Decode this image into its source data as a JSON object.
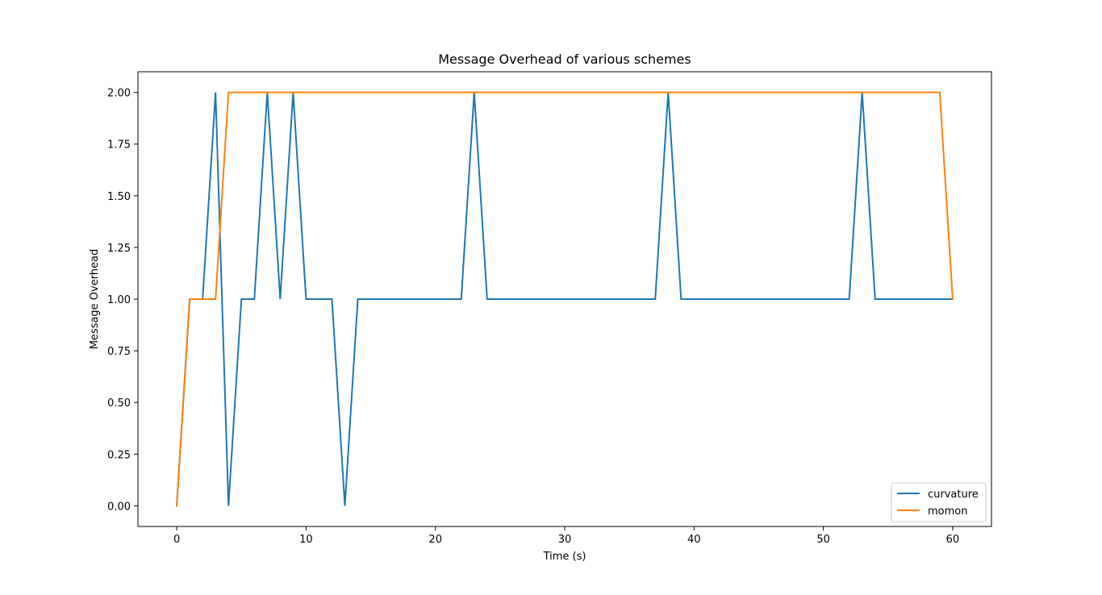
{
  "chart_data": {
    "type": "line",
    "title": "Message Overhead of various schemes",
    "xlabel": "Time (s)",
    "ylabel": "Message Overhead",
    "xlim": [
      -3,
      63
    ],
    "ylim": [
      -0.1,
      2.1
    ],
    "xticks": [
      0,
      10,
      20,
      30,
      40,
      50,
      60
    ],
    "xtick_labels": [
      "0",
      "10",
      "20",
      "30",
      "40",
      "50",
      "60"
    ],
    "yticks": [
      0,
      0.25,
      0.5,
      0.75,
      1.0,
      1.25,
      1.5,
      1.75,
      2.0
    ],
    "ytick_labels": [
      "0.00",
      "0.25",
      "0.50",
      "0.75",
      "1.00",
      "1.25",
      "1.50",
      "1.75",
      "2.00"
    ],
    "grid": false,
    "legend_position": "lower right",
    "x": [
      0,
      1,
      2,
      3,
      4,
      5,
      6,
      7,
      8,
      9,
      10,
      11,
      12,
      13,
      14,
      15,
      16,
      17,
      18,
      19,
      20,
      21,
      22,
      23,
      24,
      25,
      26,
      27,
      28,
      29,
      30,
      31,
      32,
      33,
      34,
      35,
      36,
      37,
      38,
      39,
      40,
      41,
      42,
      43,
      44,
      45,
      46,
      47,
      48,
      49,
      50,
      51,
      52,
      53,
      54,
      55,
      56,
      57,
      58,
      59,
      60
    ],
    "series": [
      {
        "name": "curvature",
        "color": "#1f77b4",
        "values": [
          0,
          1,
          1,
          2,
          0,
          1,
          1,
          2,
          1,
          2,
          1,
          1,
          1,
          0,
          1,
          1,
          1,
          1,
          1,
          1,
          1,
          1,
          1,
          2,
          1,
          1,
          1,
          1,
          1,
          1,
          1,
          1,
          1,
          1,
          1,
          1,
          1,
          1,
          2,
          1,
          1,
          1,
          1,
          1,
          1,
          1,
          1,
          1,
          1,
          1,
          1,
          1,
          1,
          2,
          1,
          1,
          1,
          1,
          1,
          1,
          1
        ]
      },
      {
        "name": "momon",
        "color": "#ff7f0e",
        "values": [
          0,
          1,
          1,
          1,
          2,
          2,
          2,
          2,
          2,
          2,
          2,
          2,
          2,
          2,
          2,
          2,
          2,
          2,
          2,
          2,
          2,
          2,
          2,
          2,
          2,
          2,
          2,
          2,
          2,
          2,
          2,
          2,
          2,
          2,
          2,
          2,
          2,
          2,
          2,
          2,
          2,
          2,
          2,
          2,
          2,
          2,
          2,
          2,
          2,
          2,
          2,
          2,
          2,
          2,
          2,
          2,
          2,
          2,
          2,
          2,
          1
        ]
      }
    ]
  }
}
